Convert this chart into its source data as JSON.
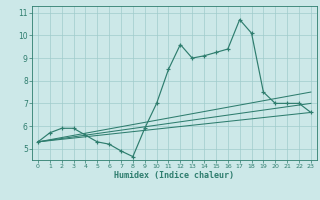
{
  "xlabel": "Humidex (Indice chaleur)",
  "bg_color": "#cce8e8",
  "line_color": "#2e7d6e",
  "grid_color": "#a0cccc",
  "xlim": [
    -0.5,
    23.5
  ],
  "ylim": [
    4.5,
    11.3
  ],
  "yticks": [
    5,
    6,
    7,
    8,
    9,
    10,
    11
  ],
  "xticks": [
    0,
    1,
    2,
    3,
    4,
    5,
    6,
    7,
    8,
    9,
    10,
    11,
    12,
    13,
    14,
    15,
    16,
    17,
    18,
    19,
    20,
    21,
    22,
    23
  ],
  "series_main_x": [
    0,
    1,
    2,
    3,
    4,
    5,
    6,
    7,
    8,
    9,
    10,
    11,
    12,
    13,
    14,
    15,
    16,
    17,
    18,
    19,
    20,
    21,
    22,
    23
  ],
  "series_main_y": [
    5.3,
    5.7,
    5.9,
    5.9,
    5.6,
    5.3,
    5.2,
    4.9,
    4.65,
    5.9,
    7.0,
    8.5,
    9.6,
    9.0,
    9.1,
    9.25,
    9.4,
    10.7,
    10.1,
    7.5,
    7.0,
    7.0,
    7.0,
    6.6
  ],
  "fan_lines": [
    {
      "x": [
        0,
        23
      ],
      "y": [
        5.3,
        6.6
      ]
    },
    {
      "x": [
        0,
        23
      ],
      "y": [
        5.3,
        7.0
      ]
    },
    {
      "x": [
        0,
        23
      ],
      "y": [
        5.3,
        7.5
      ]
    }
  ]
}
